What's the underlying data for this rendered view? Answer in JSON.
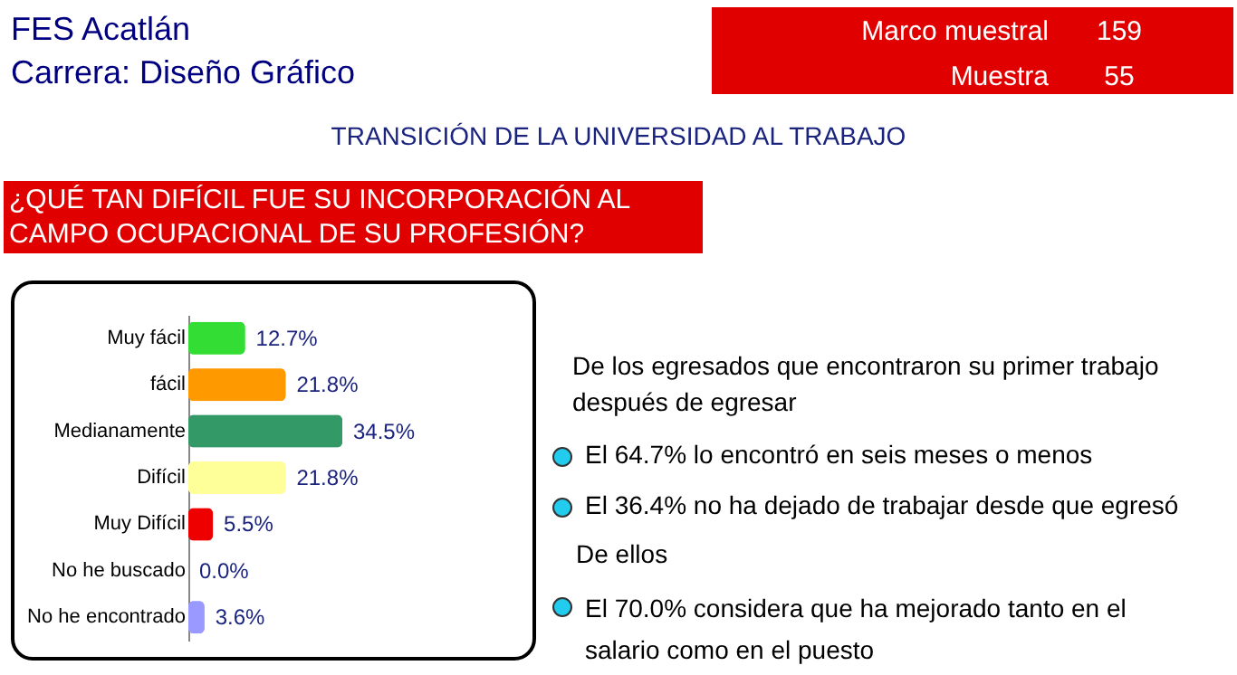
{
  "chart_data": {
    "type": "bar",
    "orientation": "horizontal",
    "title": "TRANSICIÓN DE LA UNIVERSIDAD AL TRABAJO",
    "subtitle": "¿QUÉ TAN DIFÍCIL FUE SU INCORPORACIÓN AL CAMPO OCUPACIONAL DE SU PROFESIÓN?",
    "categories": [
      "Muy fácil",
      "fácil",
      "Medianamente",
      "Difícil",
      "Muy Difícil",
      "No he buscado",
      "No he encontrado"
    ],
    "values": [
      12.7,
      21.8,
      34.5,
      21.8,
      5.5,
      0.0,
      3.6
    ],
    "value_labels": [
      "12.7%",
      "21.8%",
      "34.5%",
      "21.8%",
      "5.5%",
      "0.0%",
      "3.6%"
    ],
    "colors": [
      "#33dd33",
      "#ff9900",
      "#339966",
      "#ffff99",
      "#ee0000",
      "#6666aa",
      "#9999ff"
    ],
    "annotations": [
      "FES Acatlán",
      "Carrera: Diseño Gráfico",
      "Marco muestral",
      "159",
      "Muestra",
      "55",
      "De los egresados que encontraron su primer trabajo después de egresar",
      "El  64.7%  lo encontró en seis meses o menos",
      "El  36.4%  no ha dejado de trabajar desde que egresó",
      "De ellos",
      "El  70.0%  considera que ha mejorado tanto en el salario como en el puesto"
    ]
  }
}
